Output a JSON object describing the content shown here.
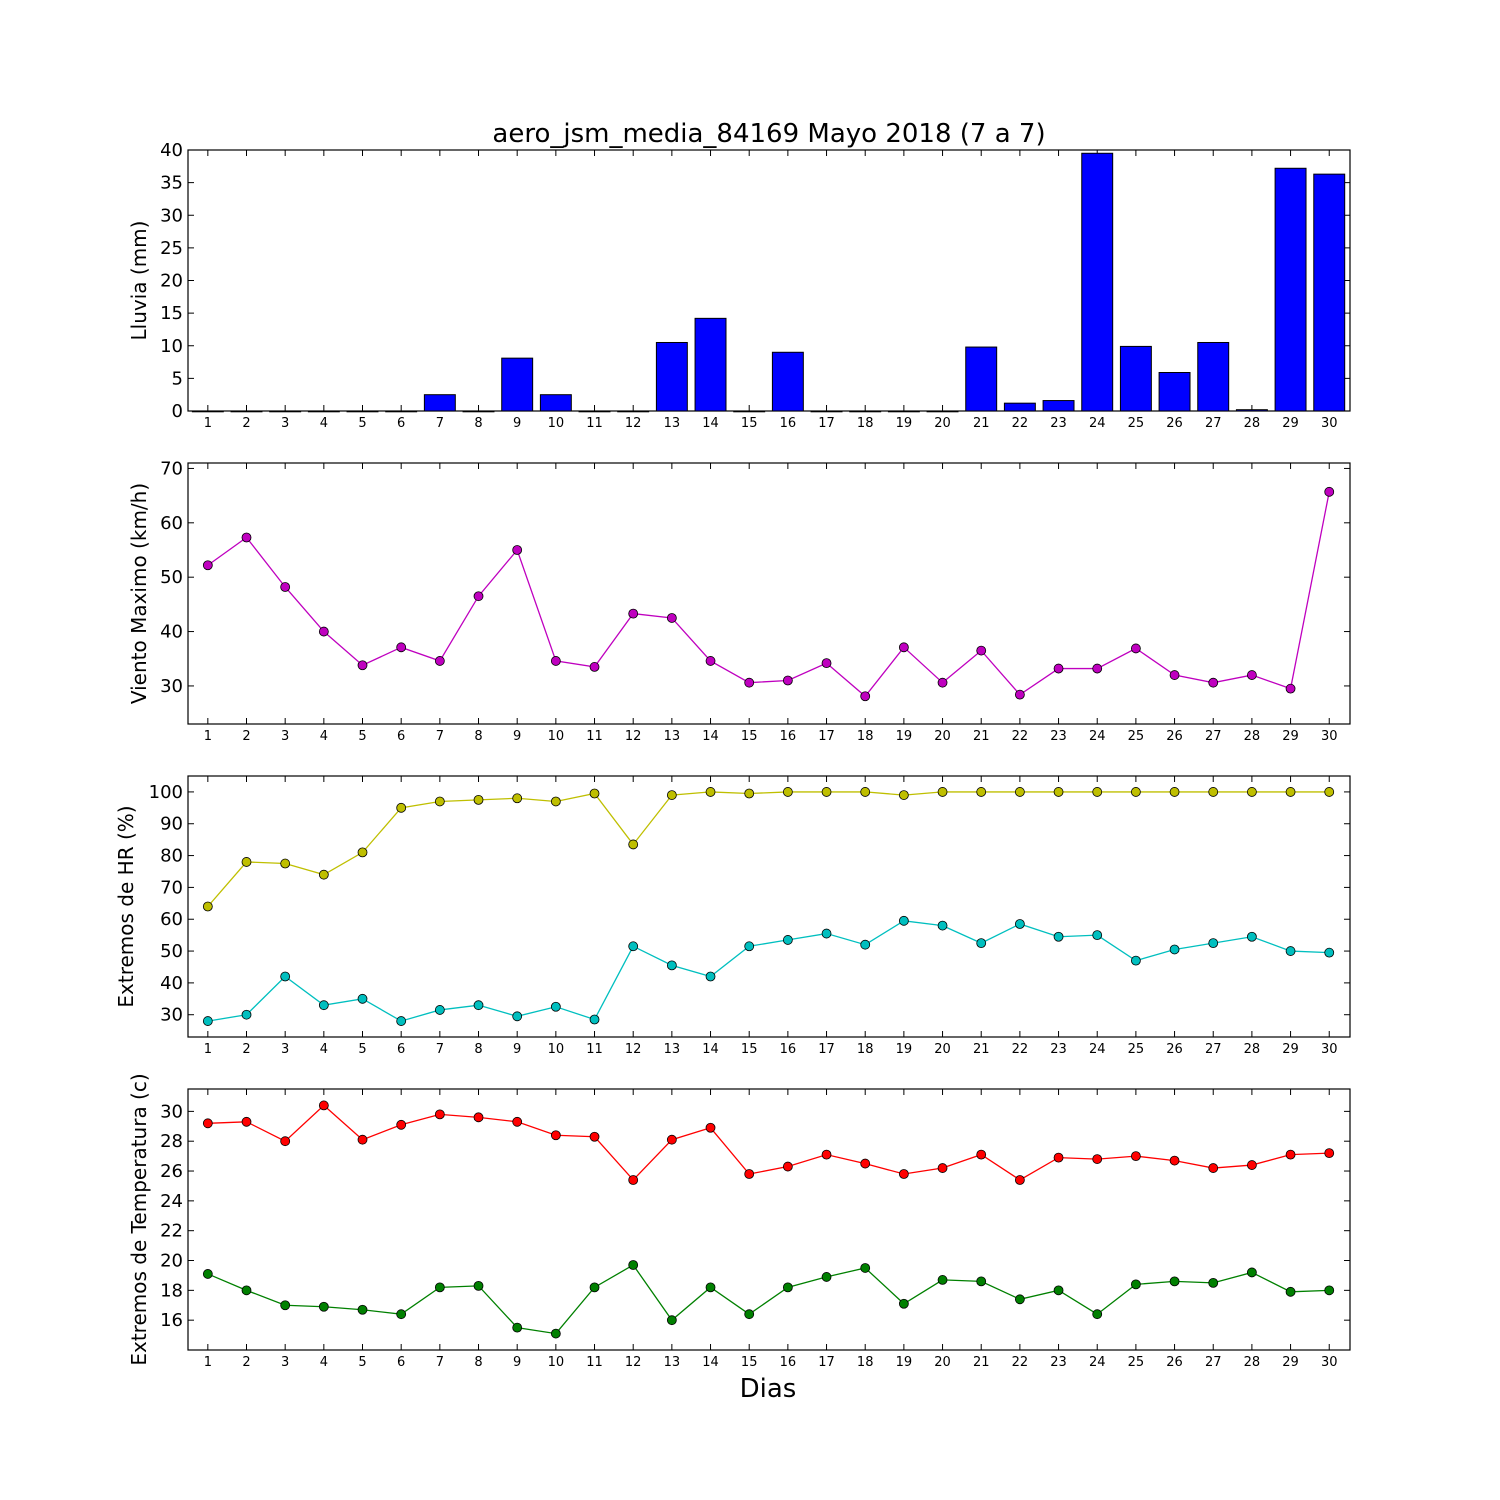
{
  "title": "aero_jsm_media_84169 Mayo 2018  (7 a 7)",
  "xlabel": "Dias",
  "chart_data": [
    {
      "type": "bar",
      "ylabel": "Lluvia (mm)",
      "ylim": [
        0,
        40
      ],
      "yticks": [
        0,
        5,
        10,
        15,
        20,
        25,
        30,
        35,
        40
      ],
      "categories": [
        "1",
        "2",
        "3",
        "4",
        "5",
        "6",
        "7",
        "8",
        "9",
        "10",
        "11",
        "12",
        "13",
        "14",
        "15",
        "16",
        "17",
        "18",
        "19",
        "20",
        "21",
        "22",
        "23",
        "24",
        "25",
        "26",
        "27",
        "28",
        "29",
        "30"
      ],
      "series": [
        {
          "color": "#0000ff",
          "values": [
            0,
            0,
            0,
            0,
            0,
            0,
            2.5,
            0,
            8.1,
            2.5,
            0,
            0,
            10.5,
            14.2,
            0,
            9.0,
            0,
            0,
            0,
            0,
            9.8,
            1.2,
            1.6,
            39.5,
            9.9,
            5.9,
            10.5,
            0.2,
            37.2,
            36.3
          ]
        }
      ]
    },
    {
      "type": "line",
      "ylabel": "Viento Maximo (km/h)",
      "ylim": [
        23,
        71
      ],
      "yticks": [
        30,
        40,
        50,
        60,
        70
      ],
      "categories": [
        "1",
        "2",
        "3",
        "4",
        "5",
        "6",
        "7",
        "8",
        "9",
        "10",
        "11",
        "12",
        "13",
        "14",
        "15",
        "16",
        "17",
        "18",
        "19",
        "20",
        "21",
        "22",
        "23",
        "24",
        "25",
        "26",
        "27",
        "28",
        "29",
        "30"
      ],
      "series": [
        {
          "color": "#bf00bf",
          "values": [
            52.2,
            57.3,
            48.2,
            40.0,
            33.8,
            37.1,
            34.6,
            46.5,
            55.0,
            34.6,
            33.5,
            43.3,
            42.5,
            34.6,
            30.6,
            31.0,
            34.2,
            28.1,
            37.1,
            30.6,
            36.5,
            28.4,
            33.2,
            33.2,
            36.9,
            32.0,
            30.6,
            32.0,
            29.5,
            65.7
          ]
        }
      ]
    },
    {
      "type": "line",
      "ylabel": "Extremos de HR (%)",
      "ylim": [
        23,
        105
      ],
      "yticks": [
        30,
        40,
        50,
        60,
        70,
        80,
        90,
        100
      ],
      "categories": [
        "1",
        "2",
        "3",
        "4",
        "5",
        "6",
        "7",
        "8",
        "9",
        "10",
        "11",
        "12",
        "13",
        "14",
        "15",
        "16",
        "17",
        "18",
        "19",
        "20",
        "21",
        "22",
        "23",
        "24",
        "25",
        "26",
        "27",
        "28",
        "29",
        "30"
      ],
      "series": [
        {
          "color": "#bfbf00",
          "values": [
            64,
            78,
            77.5,
            74,
            81,
            95,
            97,
            97.5,
            98,
            97,
            99.5,
            83.5,
            99,
            100,
            99.5,
            100,
            100,
            100,
            99,
            100,
            100,
            100,
            100,
            100,
            100,
            100,
            100,
            100,
            100,
            100
          ]
        },
        {
          "color": "#00bfbf",
          "values": [
            28,
            30,
            42,
            33,
            35,
            28,
            31.5,
            33,
            29.5,
            32.5,
            28.5,
            51.5,
            45.5,
            42,
            51.5,
            53.5,
            55.5,
            52,
            59.5,
            58,
            52.5,
            58.5,
            54.5,
            55,
            47,
            50.5,
            52.5,
            54.5,
            50,
            49.5
          ]
        }
      ]
    },
    {
      "type": "line",
      "ylabel": "Extremos de Temperatura (c)",
      "ylim": [
        14,
        31.5
      ],
      "yticks": [
        16,
        18,
        20,
        22,
        24,
        26,
        28,
        30
      ],
      "categories": [
        "1",
        "2",
        "3",
        "4",
        "5",
        "6",
        "7",
        "8",
        "9",
        "10",
        "11",
        "12",
        "13",
        "14",
        "15",
        "16",
        "17",
        "18",
        "19",
        "20",
        "21",
        "22",
        "23",
        "24",
        "25",
        "26",
        "27",
        "28",
        "29",
        "30"
      ],
      "series": [
        {
          "color": "#ff0000",
          "values": [
            29.2,
            29.3,
            28.0,
            30.4,
            28.1,
            29.1,
            29.8,
            29.6,
            29.3,
            28.4,
            28.3,
            25.4,
            28.1,
            28.9,
            25.8,
            26.3,
            27.1,
            26.5,
            25.8,
            26.2,
            27.1,
            25.4,
            26.9,
            26.8,
            27.0,
            26.7,
            26.2,
            26.4,
            27.1,
            27.2
          ]
        },
        {
          "color": "#008000",
          "values": [
            19.1,
            18.0,
            17.0,
            16.9,
            16.7,
            16.4,
            18.2,
            18.3,
            15.5,
            15.1,
            18.2,
            19.7,
            16.0,
            18.2,
            16.4,
            18.2,
            18.9,
            19.5,
            17.1,
            18.7,
            18.6,
            17.4,
            18.0,
            16.4,
            18.4,
            18.6,
            18.5,
            19.2,
            17.9,
            18.0
          ]
        }
      ]
    }
  ]
}
